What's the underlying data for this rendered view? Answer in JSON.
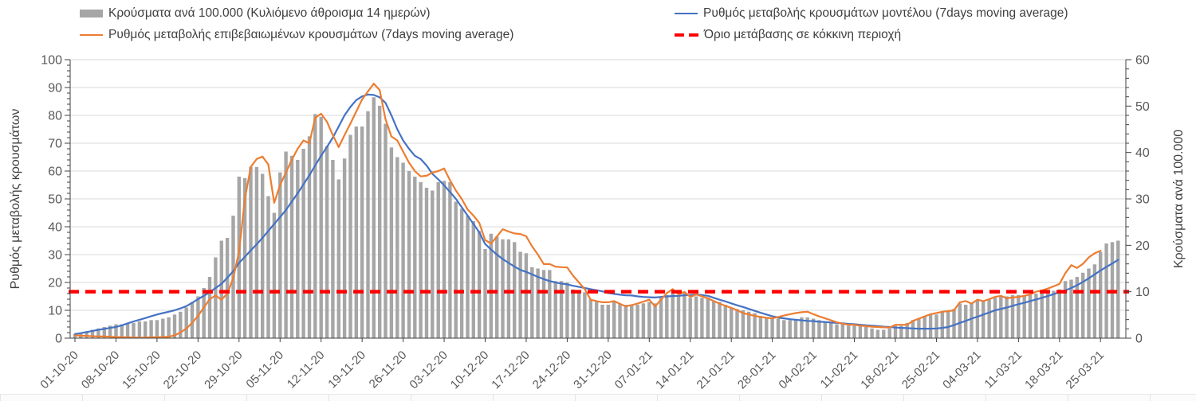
{
  "chart_data": {
    "type": "combo",
    "title": "",
    "start_date": "01-10-20",
    "x_tick_labels": [
      "01-10-20",
      "08-10-20",
      "15-10-20",
      "22-10-20",
      "29-10-20",
      "05-11-20",
      "12-11-20",
      "19-11-20",
      "26-11-20",
      "03-12-20",
      "10-12-20",
      "17-12-20",
      "24-12-20",
      "31-12-20",
      "07-01-21",
      "14-01-21",
      "21-01-21",
      "28-01-21",
      "04-02-21",
      "11-02-21",
      "18-02-21",
      "25-02-21",
      "04-03-21",
      "11-03-21",
      "18-03-21",
      "25-03-21"
    ],
    "left_axis": {
      "label": "Ρυθμός μεταβολής κρουσμάτων",
      "min": 0,
      "max": 100,
      "step": 10,
      "minor_step": 2
    },
    "right_axis": {
      "label": "Κρούσματα ανά 100.000",
      "min": 0,
      "max": 60,
      "step": 10,
      "minor_step": 2
    },
    "grid": true,
    "legend_position": "top",
    "series": [
      {
        "name": "Κρούσματα ανά 100.000 (Κυλιόμενο άθροισμα 14 ημερών)",
        "type": "bar",
        "axis": "right",
        "color": "#a6a6a6",
        "values": [
          0.9,
          1.2,
          1.5,
          1.8,
          2.1,
          2.4,
          2.7,
          3.0,
          3.0,
          3.3,
          3.3,
          3.6,
          3.6,
          3.9,
          3.9,
          4.2,
          4.5,
          5.1,
          5.7,
          6.6,
          7.8,
          9.0,
          10.8,
          13.2,
          17.4,
          21.0,
          21.6,
          26.4,
          34.8,
          34.5,
          36.9,
          36.9,
          35.4,
          30.6,
          27.0,
          35.7,
          40.2,
          39.3,
          38.4,
          40.8,
          43.5,
          48.3,
          47.7,
          41.4,
          38.4,
          34.2,
          38.7,
          43.8,
          45.6,
          45.6,
          48.9,
          51.9,
          50.1,
          46.2,
          41.1,
          39.0,
          37.8,
          36.0,
          34.8,
          33.6,
          32.4,
          31.8,
          33.6,
          33.9,
          33.6,
          29.4,
          27.9,
          26.4,
          25.2,
          23.1,
          19.2,
          22.5,
          21.9,
          21.3,
          21.3,
          20.7,
          18.6,
          18.3,
          15.3,
          15.0,
          14.7,
          14.7,
          12.3,
          12.3,
          12.0,
          10.5,
          9.9,
          9.9,
          8.4,
          7.8,
          7.2,
          7.2,
          7.8,
          7.5,
          7.2,
          7.2,
          7.2,
          7.5,
          7.8,
          7.5,
          8.7,
          9.3,
          9.9,
          9.3,
          9.9,
          8.7,
          9.0,
          8.7,
          8.7,
          8.1,
          7.8,
          7.2,
          6.6,
          6.3,
          6.0,
          5.7,
          5.4,
          4.8,
          4.5,
          4.2,
          4.2,
          3.9,
          3.9,
          3.9,
          4.5,
          4.5,
          4.2,
          3.9,
          3.6,
          3.3,
          3.0,
          3.0,
          2.7,
          2.7,
          2.7,
          2.4,
          2.1,
          1.8,
          1.8,
          2.1,
          2.7,
          2.7,
          3.3,
          3.9,
          4.2,
          4.8,
          5.1,
          5.1,
          5.7,
          6.0,
          6.3,
          7.5,
          7.2,
          7.5,
          8.1,
          8.1,
          8.4,
          8.7,
          9.0,
          9.0,
          9.3,
          9.3,
          9.3,
          9.3,
          9.6,
          9.9,
          9.9,
          10.2,
          10.5,
          12.3,
          12.6,
          13.2,
          14.1,
          15.0,
          15.9,
          18.6,
          20.4,
          20.7,
          21.0
        ]
      },
      {
        "name": "Ρυθμός μεταβολής κρουσμάτων μοντέλου (7days moving average)",
        "type": "line",
        "axis": "left",
        "color": "#4472c4",
        "values": [
          1.5,
          1.8,
          2.2,
          2.6,
          3.0,
          3.3,
          3.7,
          4.0,
          4.6,
          5.3,
          6.0,
          6.6,
          7.2,
          7.9,
          8.5,
          9.0,
          9.5,
          10.0,
          10.7,
          11.5,
          12.7,
          14.0,
          15.2,
          16.5,
          18.0,
          19.5,
          21.7,
          24.0,
          27.0,
          29.2,
          31.5,
          33.7,
          36.0,
          38.5,
          41.0,
          43.5,
          46.0,
          49.0,
          52.0,
          55.2,
          58.5,
          62.0,
          65.5,
          68.7,
          72.0,
          76.0,
          80.0,
          83.0,
          85.5,
          86.8,
          87.5,
          87.3,
          86.5,
          84.5,
          80.0,
          75.0,
          71.0,
          68.0,
          65.5,
          64.3,
          62.0,
          59.0,
          57.0,
          54.9,
          52.5,
          50.0,
          47.0,
          44.0,
          41.0,
          38.0,
          33.8,
          31.8,
          30.0,
          28.4,
          27.0,
          25.7,
          24.5,
          23.8,
          22.9,
          22.0,
          21.2,
          20.5,
          20.0,
          19.6,
          19.3,
          18.8,
          18.4,
          18.0,
          17.6,
          17.2,
          16.8,
          16.2,
          15.9,
          15.6,
          15.4,
          15.3,
          15.0,
          14.8,
          14.7,
          14.6,
          14.8,
          15.0,
          15.1,
          15.2,
          15.4,
          15.5,
          15.7,
          15.5,
          15.2,
          14.5,
          13.8,
          13.2,
          12.5,
          11.8,
          11.2,
          10.5,
          9.8,
          9.1,
          8.5,
          7.9,
          7.4,
          7.1,
          6.8,
          6.6,
          6.4,
          6.2,
          6.1,
          5.9,
          5.8,
          5.6,
          5.5,
          5.3,
          5.1,
          5.0,
          4.8,
          4.6,
          4.5,
          4.3,
          4.1,
          4.0,
          3.8,
          3.7,
          3.6,
          3.5,
          3.4,
          3.4,
          3.4,
          3.5,
          3.7,
          4.0,
          4.7,
          5.5,
          6.2,
          7.0,
          7.7,
          8.5,
          9.2,
          10.0,
          10.5,
          11.0,
          11.6,
          12.2,
          12.7,
          13.3,
          13.9,
          14.5,
          15.1,
          15.8,
          16.5,
          17.1,
          18.0,
          19.0,
          20.2,
          21.5,
          22.9,
          24.3,
          25.6,
          26.8,
          28.1
        ]
      },
      {
        "name": "Ρυθμός μεταβολής επιβεβαιωμένων κρουσμάτων (7days moving average)",
        "type": "line",
        "axis": "left",
        "color": "#ed7d31",
        "values": [
          1.0,
          0.9,
          0.8,
          0.7,
          0.6,
          0.6,
          0.5,
          0.4,
          0.3,
          0.3,
          0.2,
          0.2,
          0.2,
          0.3,
          0.3,
          0.4,
          0.5,
          1.0,
          2.0,
          3.5,
          5.5,
          8.0,
          11.0,
          14.0,
          15.3,
          13.8,
          16.0,
          21.5,
          31.0,
          50.0,
          61.5,
          64.3,
          65.2,
          62.4,
          48.6,
          55.0,
          59.5,
          64.0,
          68.0,
          71.0,
          70.0,
          79.1,
          80.6,
          77.7,
          72.9,
          68.6,
          72.9,
          77.0,
          81.4,
          85.7,
          88.6,
          91.4,
          89.1,
          78.6,
          72.4,
          71.0,
          67.0,
          63.0,
          60.0,
          58.1,
          58.3,
          59.5,
          60.0,
          60.9,
          56.7,
          53.0,
          50.0,
          46.2,
          44.0,
          41.4,
          35.2,
          34.0,
          36.5,
          39.1,
          38.3,
          37.6,
          37.4,
          36.6,
          33.0,
          30.0,
          26.6,
          26.6,
          25.7,
          25.5,
          25.4,
          22.4,
          20.0,
          17.6,
          13.8,
          13.3,
          12.9,
          12.9,
          13.3,
          12.3,
          11.4,
          11.9,
          12.4,
          13.1,
          13.8,
          11.4,
          13.8,
          16.2,
          17.6,
          15.7,
          16.6,
          14.8,
          15.7,
          15.0,
          14.3,
          13.3,
          12.4,
          11.6,
          10.9,
          10.0,
          9.0,
          8.5,
          8.0,
          7.6,
          7.3,
          7.1,
          7.6,
          8.1,
          8.6,
          9.0,
          9.3,
          9.5,
          8.6,
          7.8,
          7.1,
          6.4,
          5.7,
          5.2,
          4.8,
          4.8,
          4.5,
          4.3,
          4.1,
          4.0,
          3.9,
          3.8,
          4.8,
          4.8,
          4.8,
          6.2,
          7.0,
          7.8,
          8.6,
          9.0,
          9.5,
          9.7,
          10.0,
          12.9,
          13.3,
          12.4,
          13.8,
          13.3,
          14.0,
          14.8,
          15.2,
          14.3,
          14.6,
          14.8,
          15.2,
          15.7,
          16.7,
          17.1,
          17.8,
          18.6,
          19.5,
          23.3,
          26.2,
          25.2,
          26.7,
          29.0,
          30.5,
          31.4,
          null,
          null,
          null
        ]
      },
      {
        "name": "Όριο μετάβασης σε κόκκινη περιοχή",
        "type": "threshold",
        "axis": "right",
        "color": "#ff0000",
        "value": 10
      }
    ]
  },
  "colors": {
    "bars": "#a6a6a6",
    "model_line": "#4472c4",
    "confirmed_line": "#ed7d31",
    "threshold": "#ff0000",
    "grid": "#d9d9d9",
    "axis": "#404040",
    "tick_text": "#595959"
  }
}
